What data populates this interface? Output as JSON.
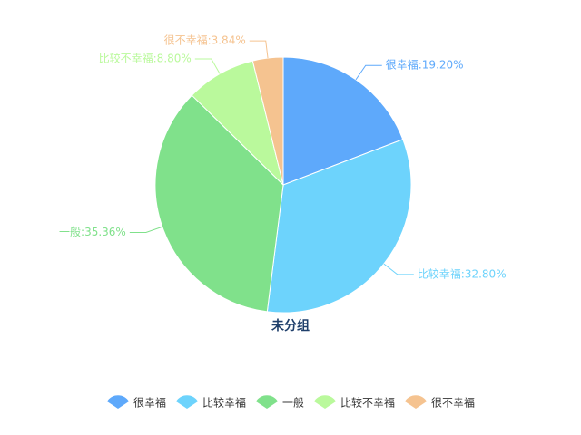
{
  "chart_data": {
    "type": "pie",
    "title": "未分组",
    "categories": [
      "很幸福",
      "比较幸福",
      "一般",
      "比较不幸福",
      "很不幸福"
    ],
    "values": [
      19.2,
      32.8,
      35.36,
      8.8,
      3.84
    ],
    "value_labels": [
      "很幸福:19.20%",
      "比较幸福:32.80%",
      "一般:35.36%",
      "比较不幸福:8.80%",
      "很不幸福:3.84%"
    ],
    "colors": [
      "#5ea9fb",
      "#6dd3fc",
      "#80e18b",
      "#baf99c",
      "#f5c390"
    ],
    "legend": "bottom"
  }
}
